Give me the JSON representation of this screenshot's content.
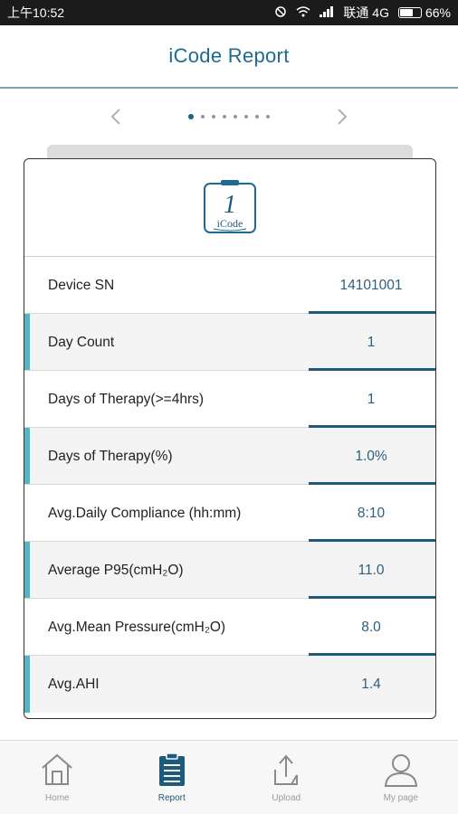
{
  "status_bar": {
    "time": "上午10:52",
    "carrier": "联通 4G",
    "battery": "66%",
    "battery_level": 0.66
  },
  "header": {
    "title": "iCode Report"
  },
  "pager": {
    "page_count": 8,
    "active_page": 1
  },
  "logo": {
    "number": "1",
    "text": "iCode"
  },
  "rows": [
    {
      "label": "Device SN",
      "value": "14101001"
    },
    {
      "label": "Day Count",
      "value": "1"
    },
    {
      "label": "Days of Therapy(>=4hrs)",
      "value": "1"
    },
    {
      "label": "Days of Therapy(%)",
      "value": "1.0%"
    },
    {
      "label": "Avg.Daily Compliance (hh:mm)",
      "value": "8:10"
    },
    {
      "label": "Average P95(cmH₂O)",
      "value": "11.0"
    },
    {
      "label": "Avg.Mean Pressure(cmH₂O)",
      "value": "8.0"
    },
    {
      "label": "Avg.AHI",
      "value": "1.4"
    }
  ],
  "bottom_nav": [
    {
      "label": "Home",
      "icon": "home-icon"
    },
    {
      "label": "Report",
      "icon": "report-icon",
      "active": true
    },
    {
      "label": "Upload",
      "icon": "upload-icon"
    },
    {
      "label": "My page",
      "icon": "user-icon"
    }
  ],
  "colors": {
    "accent": "#4fb8c4",
    "primary": "#1e5a7a",
    "title": "#1e6a93"
  }
}
